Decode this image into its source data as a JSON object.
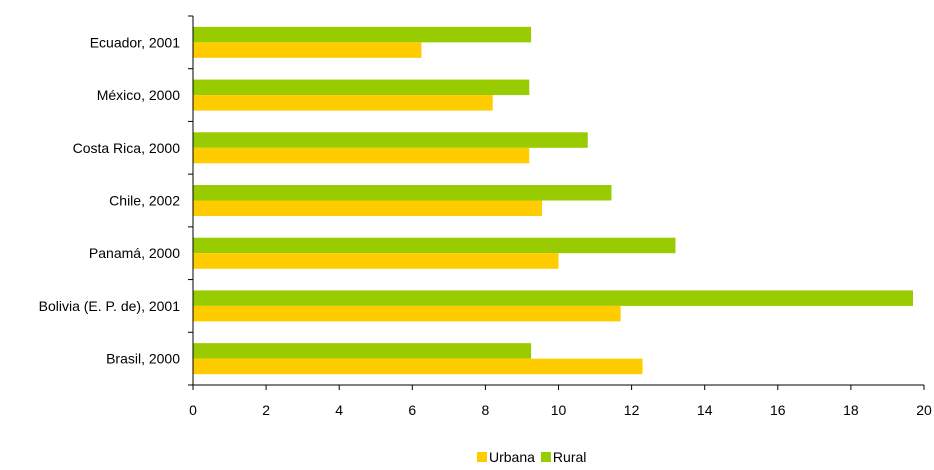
{
  "chart_data": {
    "type": "bar",
    "orientation": "horizontal",
    "categories": [
      "Ecuador, 2001",
      "México, 2000",
      "Costa Rica, 2000",
      "Chile, 2002",
      "Panamá, 2000",
      "Bolivia (E. P. de), 2001",
      "Brasil, 2000"
    ],
    "series": [
      {
        "name": "Rural",
        "color": "#99CC00",
        "values": [
          9.25,
          9.2,
          10.8,
          11.45,
          13.2,
          19.7,
          9.25
        ]
      },
      {
        "name": "Urbana",
        "color": "#FFCC00",
        "values": [
          6.25,
          8.2,
          9.2,
          9.55,
          10.0,
          11.7,
          12.3
        ]
      }
    ],
    "x_ticks": [
      0,
      2,
      4,
      6,
      8,
      10,
      12,
      14,
      16,
      18,
      20
    ],
    "xlim": [
      0,
      20
    ],
    "grid": false,
    "legend": {
      "placement": "bottom",
      "order": [
        "Urbana",
        "Rural"
      ]
    }
  }
}
